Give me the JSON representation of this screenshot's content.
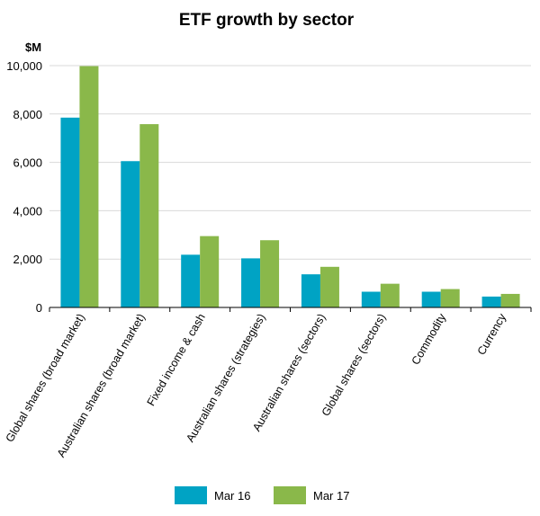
{
  "chart_data": {
    "type": "bar",
    "title": "ETF growth by sector",
    "ylabel": "$M",
    "xlabel": "",
    "ylim": [
      0,
      10000
    ],
    "yticks": [
      0,
      2000,
      4000,
      6000,
      8000,
      10000
    ],
    "ytick_labels": [
      "0",
      "2,000",
      "4,000",
      "6,000",
      "8,000",
      "10,000"
    ],
    "grid": true,
    "legend_position": "bottom",
    "categories": [
      "Global shares (broad market)",
      "Australian shares (broad market)",
      "Fixed income & cash",
      "Australian shares (strategies)",
      "Australian shares (sectors)",
      "Global shares (sectors)",
      "Commodity",
      "Currency"
    ],
    "series": [
      {
        "name": "Mar 16",
        "color": "#00a3c4",
        "values": [
          7850,
          6050,
          2180,
          2030,
          1370,
          650,
          650,
          450
        ]
      },
      {
        "name": "Mar 17",
        "color": "#8ab84a",
        "values": [
          9980,
          7580,
          2950,
          2780,
          1680,
          980,
          760,
          560
        ]
      }
    ]
  }
}
